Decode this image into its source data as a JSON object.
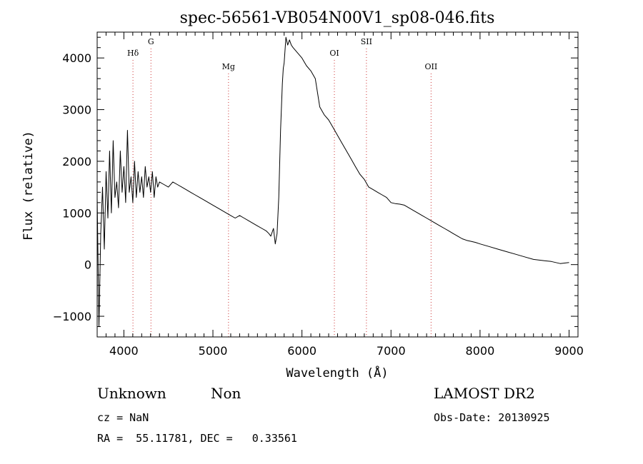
{
  "chart_data": {
    "type": "line",
    "title": "spec-56561-VB054N00V1_sp08-046.fits",
    "xlabel": "Wavelength (Å)",
    "ylabel": "Flux (relative)",
    "xlim": [
      3700,
      9100
    ],
    "ylim": [
      -1400,
      4500
    ],
    "xticks": [
      4000,
      5000,
      6000,
      7000,
      8000,
      9000
    ],
    "yticks": [
      -1000,
      0,
      1000,
      2000,
      3000,
      4000
    ],
    "grid": false,
    "series": [
      {
        "color": "#000000",
        "x": [
          3700,
          3720,
          3740,
          3760,
          3780,
          3800,
          3820,
          3840,
          3860,
          3880,
          3900,
          3920,
          3940,
          3960,
          3980,
          4000,
          4020,
          4040,
          4060,
          4080,
          4100,
          4120,
          4140,
          4160,
          4180,
          4200,
          4220,
          4240,
          4260,
          4280,
          4300,
          4320,
          4340,
          4360,
          4380,
          4400,
          4450,
          4500,
          4550,
          4600,
          4650,
          4700,
          4750,
          4800,
          4850,
          4900,
          4950,
          5000,
          5050,
          5100,
          5150,
          5200,
          5250,
          5300,
          5350,
          5400,
          5450,
          5500,
          5550,
          5600,
          5630,
          5650,
          5680,
          5700,
          5720,
          5740,
          5760,
          5780,
          5790,
          5800,
          5820,
          5840,
          5860,
          5880,
          5900,
          5950,
          6000,
          6050,
          6100,
          6150,
          6200,
          6250,
          6300,
          6350,
          6400,
          6450,
          6500,
          6550,
          6600,
          6650,
          6700,
          6750,
          6800,
          6850,
          6900,
          6950,
          7000,
          7050,
          7100,
          7150,
          7200,
          7250,
          7300,
          7350,
          7400,
          7450,
          7500,
          7550,
          7600,
          7650,
          7700,
          7750,
          7800,
          7850,
          7900,
          7950,
          8000,
          8100,
          8200,
          8300,
          8400,
          8500,
          8600,
          8700,
          8800,
          8900,
          9000
        ],
        "y": [
          1300,
          -1200,
          600,
          1500,
          300,
          1800,
          900,
          2200,
          1000,
          2400,
          1300,
          1600,
          1100,
          2200,
          1400,
          1900,
          1200,
          2600,
          1400,
          1700,
          1200,
          2000,
          1300,
          1800,
          1400,
          1700,
          1300,
          1900,
          1500,
          1700,
          1400,
          1800,
          1300,
          1700,
          1500,
          1600,
          1550,
          1500,
          1600,
          1550,
          1500,
          1450,
          1400,
          1350,
          1300,
          1250,
          1200,
          1150,
          1100,
          1050,
          1000,
          950,
          900,
          950,
          900,
          850,
          800,
          750,
          700,
          650,
          600,
          550,
          700,
          400,
          600,
          1300,
          2600,
          3500,
          3800,
          3900,
          4400,
          4250,
          4350,
          4250,
          4200,
          4100,
          4000,
          3850,
          3750,
          3600,
          3050,
          2900,
          2800,
          2650,
          2500,
          2350,
          2200,
          2050,
          1900,
          1750,
          1650,
          1500,
          1450,
          1400,
          1350,
          1300,
          1200,
          1180,
          1170,
          1150,
          1100,
          1050,
          1000,
          950,
          900,
          850,
          800,
          750,
          700,
          650,
          600,
          550,
          500,
          470,
          450,
          430,
          400,
          350,
          300,
          250,
          200,
          150,
          100,
          80,
          60,
          20,
          40
        ]
      }
    ],
    "annotations": [
      {
        "label": "Hδ",
        "x": 4102
      },
      {
        "label": "G",
        "x": 4304
      },
      {
        "label": "Mg",
        "x": 5175
      },
      {
        "label": "OI",
        "x": 6364
      },
      {
        "label": "SII",
        "x": 6724
      },
      {
        "label": "OII",
        "x": 7450
      }
    ]
  },
  "info": {
    "class": "Unknown",
    "subclass": "Non",
    "survey": "LAMOST DR2",
    "cz": "cz = NaN",
    "obs_date": "Obs-Date: 20130925",
    "coords": "RA =  55.11781, DEC =   0.33561"
  },
  "colors": {
    "spectrum": "#000000",
    "line_markers": "#cc3333"
  }
}
